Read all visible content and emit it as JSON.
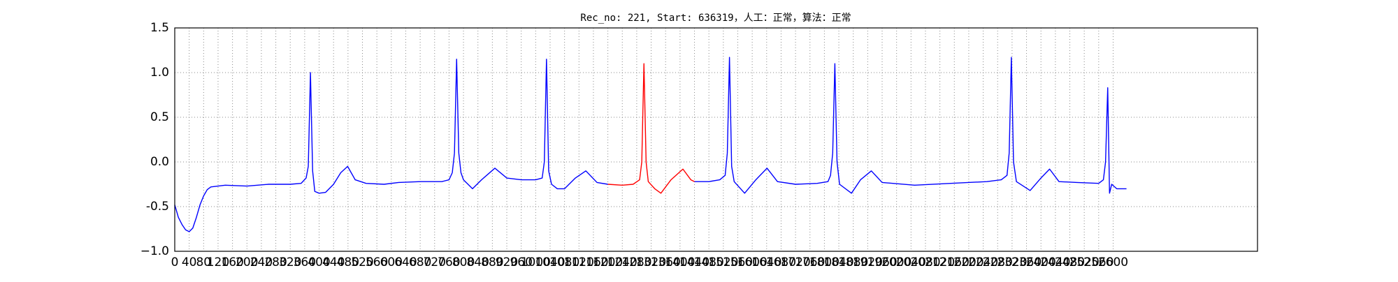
{
  "chart_data": {
    "type": "line",
    "title": "Rec_no: 221, Start: 636319，人工：正常，算法：正常",
    "x": [
      0,
      10,
      20,
      30,
      40,
      50,
      60,
      70,
      80,
      90,
      100,
      140,
      200,
      260,
      320,
      350,
      364,
      370,
      376,
      382,
      388,
      400,
      418,
      440,
      460,
      479,
      500,
      530,
      580,
      620,
      680,
      740,
      760,
      769,
      775,
      781,
      787,
      793,
      800,
      825,
      850,
      887,
      920,
      960,
      1000,
      1018,
      1024,
      1030,
      1036,
      1044,
      1060,
      1080,
      1110,
      1139,
      1170,
      1200,
      1240,
      1270,
      1288,
      1294,
      1300,
      1306,
      1312,
      1330,
      1347,
      1375,
      1408,
      1430,
      1440,
      1480,
      1510,
      1525,
      1531,
      1537,
      1543,
      1550,
      1579,
      1610,
      1641,
      1670,
      1720,
      1780,
      1810,
      1817,
      1823,
      1829,
      1835,
      1842,
      1875,
      1900,
      1930,
      1960,
      2050,
      2150,
      2250,
      2290,
      2306,
      2312,
      2318,
      2324,
      2332,
      2370,
      2400,
      2424,
      2450,
      2500,
      2560,
      2573,
      2579,
      2585,
      2590,
      2596,
      2610,
      2637
    ],
    "series": [
      {
        "color": "#0000ff",
        "values": [
          -0.48,
          -0.62,
          -0.7,
          -0.76,
          -0.78,
          -0.74,
          -0.62,
          -0.48,
          -0.38,
          -0.31,
          -0.28,
          -0.26,
          -0.27,
          -0.25,
          -0.25,
          -0.24,
          -0.18,
          -0.05,
          1.0,
          -0.1,
          -0.33,
          -0.35,
          -0.34,
          -0.25,
          -0.12,
          -0.05,
          -0.2,
          -0.24,
          -0.25,
          -0.23,
          -0.22,
          -0.22,
          -0.2,
          -0.12,
          0.1,
          1.15,
          0.1,
          -0.12,
          -0.2,
          -0.3,
          -0.2,
          -0.07,
          -0.18,
          -0.2,
          -0.2,
          -0.18,
          0.0,
          1.15,
          -0.1,
          -0.25,
          -0.3,
          -0.3,
          -0.18,
          -0.1,
          -0.23,
          -0.25,
          null,
          null,
          null,
          null,
          null,
          null,
          null,
          null,
          null,
          null,
          null,
          null,
          -0.22,
          -0.22,
          -0.2,
          -0.15,
          0.1,
          1.17,
          -0.05,
          -0.22,
          -0.35,
          -0.2,
          -0.07,
          -0.22,
          -0.25,
          -0.24,
          -0.22,
          -0.15,
          0.1,
          1.1,
          0.0,
          -0.25,
          -0.35,
          -0.2,
          -0.1,
          -0.23,
          -0.26,
          -0.24,
          -0.22,
          -0.2,
          -0.15,
          0.1,
          1.17,
          0.0,
          -0.22,
          -0.32,
          -0.18,
          -0.08,
          -0.22,
          -0.23,
          -0.24,
          -0.2,
          0.0,
          0.83,
          -0.35,
          -0.25,
          -0.3,
          -0.3
        ]
      },
      {
        "color": "#ff0000",
        "values": [
          null,
          null,
          null,
          null,
          null,
          null,
          null,
          null,
          null,
          null,
          null,
          null,
          null,
          null,
          null,
          null,
          null,
          null,
          null,
          null,
          null,
          null,
          null,
          null,
          null,
          null,
          null,
          null,
          null,
          null,
          null,
          null,
          null,
          null,
          null,
          null,
          null,
          null,
          null,
          null,
          null,
          null,
          null,
          null,
          null,
          null,
          null,
          null,
          null,
          null,
          null,
          null,
          null,
          null,
          null,
          -0.25,
          -0.26,
          -0.25,
          -0.2,
          0.0,
          1.1,
          0.0,
          -0.22,
          -0.3,
          -0.35,
          -0.2,
          -0.08,
          -0.2,
          -0.22,
          null,
          null,
          null,
          null,
          null,
          null,
          null,
          null,
          null,
          null,
          null,
          null,
          null,
          null,
          null,
          null,
          null,
          null,
          null,
          null,
          null,
          null,
          null,
          null,
          null,
          null,
          null,
          null,
          null,
          null,
          null,
          null,
          null,
          null,
          null,
          null,
          null,
          null,
          null,
          null,
          null,
          null,
          null,
          null,
          null
        ]
      }
    ],
    "xlim": [
      0,
      3000
    ],
    "ylim": [
      -1,
      1.5
    ],
    "xticks": [
      0,
      40,
      80,
      120,
      160,
      200,
      240,
      280,
      320,
      360,
      400,
      440,
      480,
      520,
      560,
      600,
      640,
      680,
      720,
      760,
      800,
      840,
      880,
      920,
      960,
      1000,
      1040,
      1080,
      1120,
      1160,
      1200,
      1240,
      1280,
      1320,
      1360,
      1400,
      1440,
      1480,
      1520,
      1560,
      1600,
      1640,
      1680,
      1720,
      1760,
      1800,
      1840,
      1880,
      1920,
      1960,
      2000,
      2040,
      2080,
      2120,
      2160,
      2200,
      2240,
      2280,
      2320,
      2360,
      2400,
      2440,
      2480,
      2520,
      2560,
      2600
    ],
    "yticks": [
      {
        "value": -1,
        "label": "−1.0"
      },
      -0.5,
      {
        "value": 0,
        "label": "0.0"
      },
      0.5,
      {
        "value": 1,
        "label": "1.0"
      },
      1.5
    ],
    "grid": true
  }
}
